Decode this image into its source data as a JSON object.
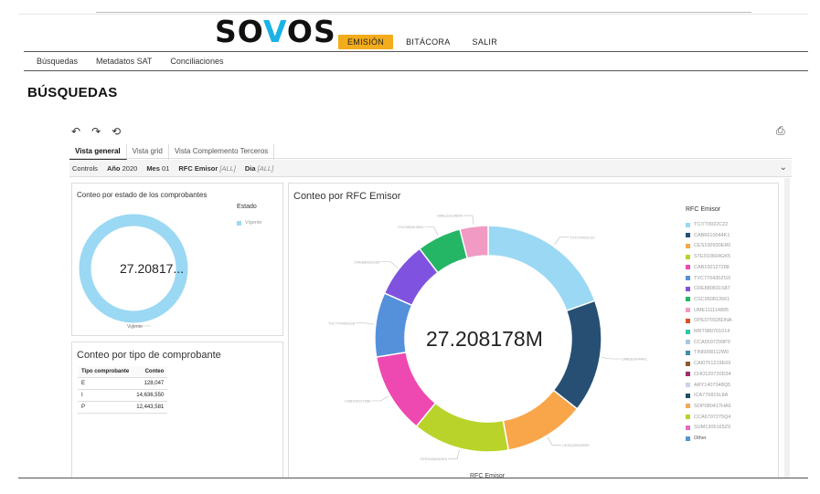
{
  "brand": {
    "logo_s": "SO",
    "logo_v": "V",
    "logo_os": "OS"
  },
  "topnav": {
    "emision": "EMISIÓN",
    "bitacora": "BITÁCORA",
    "salir": "SALIR"
  },
  "subnav": [
    "Búsquedas",
    "Metadatos SAT",
    "Conciliaciones"
  ],
  "page_title": "BÚSQUEDAS",
  "toolbar": {
    "undo": "↶",
    "redo": "↷",
    "reset": "⟲",
    "print": "⎙"
  },
  "tabs": [
    "Vista general",
    "Vista grid",
    "Vista Complemento Terceros"
  ],
  "controls": {
    "label": "Controls",
    "anio_label": "Año",
    "anio_value": "2020",
    "mes_label": "Mes",
    "mes_value": "01",
    "rfc_label": "RFC Emisor",
    "rfc_value": "[ALL]",
    "dia_label": "Dia",
    "dia_value": "[ALL]"
  },
  "panel_estado": {
    "title": "Conteo por estado de los comprobantes",
    "legend_title": "Estado",
    "legend": [
      {
        "label": "Vigente",
        "color": "#9bd8f3"
      }
    ],
    "center": "27.20817...",
    "slice_label": "Vigente"
  },
  "panel_tipo": {
    "title": "Conteo por tipo de comprobante",
    "headers": [
      "Tipo comprobante",
      "Conteo"
    ],
    "rows": [
      [
        "E",
        "128,047"
      ],
      [
        "I",
        "14,636,550"
      ],
      [
        "P",
        "12,443,581"
      ]
    ]
  },
  "panel_rfc": {
    "title": "Conteo por RFC Emisor",
    "center": "27.208178M",
    "legend_title": "RFC Emisor",
    "xlabel": "RFC Emisor"
  },
  "chart_data": {
    "type": "pie",
    "title": "Conteo por RFC Emisor",
    "total": "27.208178M",
    "legend": [
      {
        "label": "TCI770922C22",
        "color": "#9bd8f3",
        "value": 17.0
      },
      {
        "label": "CAB6610044K1",
        "color": "#264f73",
        "value": 14.0
      },
      {
        "label": "CES100930ER0",
        "color": "#f9a64a",
        "value": 10.0
      },
      {
        "label": "STE010604GK5",
        "color": "#bad32a",
        "value": 12.0
      },
      {
        "label": "CAB100127288",
        "color": "#ee49b0",
        "value": 10.0
      },
      {
        "label": "TVC770430ZG9",
        "color": "#5591db",
        "value": 8.0
      },
      {
        "label": "CRE880831S87",
        "color": "#7f53df",
        "value": 7.0
      },
      {
        "label": "CSC950813661",
        "color": "#25b665",
        "value": 5.5
      },
      {
        "label": "UME111114895",
        "color": "#f09ac4",
        "value": 3.5
      },
      {
        "label": "OPE070326DNA",
        "color": "#d7521d",
        "value": 0
      },
      {
        "label": "MRT980701014",
        "color": "#2cc9a4",
        "value": 0
      },
      {
        "label": "CCA5507299P9",
        "color": "#a9c8e0",
        "value": 0
      },
      {
        "label": "TIN6008112W0",
        "color": "#3a8faa",
        "value": 0
      },
      {
        "label": "CAI0751219E69",
        "color": "#8b5a2b",
        "value": 0
      },
      {
        "label": "CHO120720D34",
        "color": "#9f2d6c",
        "value": 0
      },
      {
        "label": "ARY1407048Q5",
        "color": "#c7d3e8",
        "value": 0
      },
      {
        "label": "ICA770815L8A",
        "color": "#1e4e6a",
        "value": 0
      },
      {
        "label": "SOP080417HA6",
        "color": "#f5a85a",
        "value": 0
      },
      {
        "label": "CCA6707275Q4",
        "color": "#b6d32b",
        "value": 0
      },
      {
        "label": "SUM1305165Z9",
        "color": "#e36bc0",
        "value": 0
      },
      {
        "label": "Other",
        "color": "#5591db",
        "value": 0
      }
    ]
  }
}
